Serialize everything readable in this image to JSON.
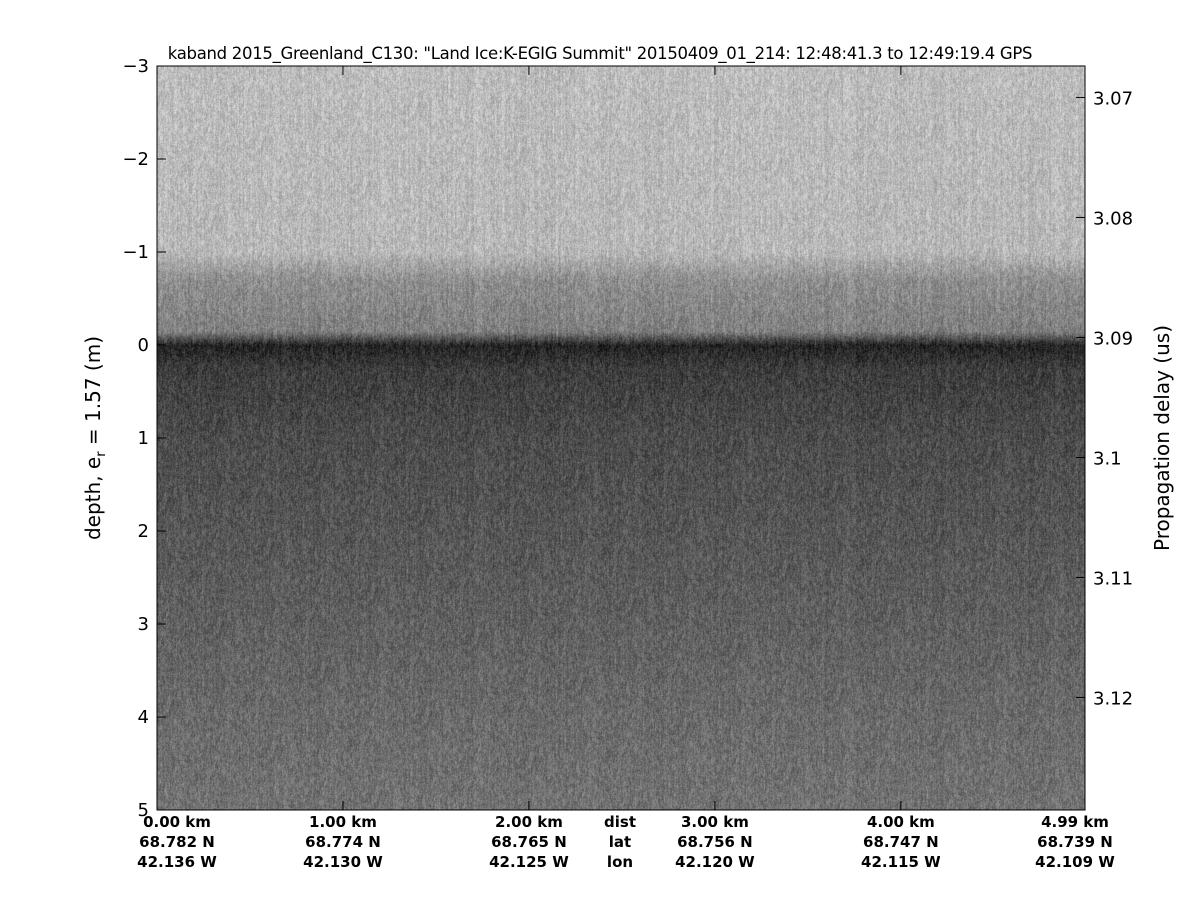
{
  "chart_data": {
    "type": "heatmap",
    "title": "kaband 2015_Greenland_C130: \"Land Ice:K-EGIG Summit\"  20150409_01_214: 12:48:41.3 to 12:49:19.4 GPS",
    "colormap": "gray",
    "ylabel_left": "depth, e",
    "ylabel_left_sub": "r",
    "ylabel_left_tail": " = 1.57 (m)",
    "ylabel_right": "Propagation delay (us)",
    "ylim_left": [
      -3,
      5
    ],
    "yticks_left": [
      -3,
      -2,
      -1,
      0,
      1,
      2,
      3,
      4,
      5
    ],
    "ytick_labels_left": [
      "−3",
      "−2",
      "−1",
      "0",
      "1",
      "2",
      "3",
      "4",
      "5"
    ],
    "ylim_right": [
      3.06738,
      3.12938
    ],
    "yticks_right": [
      3.07,
      3.08,
      3.09,
      3.1,
      3.11,
      3.12
    ],
    "ytick_labels_right": [
      "3.07",
      "3.08",
      "3.09",
      "3.1",
      "3.11",
      "3.12"
    ],
    "xlim_km": [
      0,
      4.99
    ],
    "xticks_km": [
      0,
      1,
      2,
      3,
      4,
      4.99
    ],
    "x_rows": [
      {
        "name": "dist",
        "labels": [
          "0.00 km",
          "1.00 km",
          "2.00 km",
          "3.00 km",
          "4.00 km",
          "4.99 km"
        ]
      },
      {
        "name": "lat",
        "labels": [
          "68.782 N",
          "68.774 N",
          "68.765 N",
          "68.756 N",
          "68.747 N",
          "68.739 N"
        ]
      },
      {
        "name": "lon",
        "labels": [
          "42.136 W",
          "42.130 W",
          "42.125 W",
          "42.120 W",
          "42.115 W",
          "42.109 W"
        ]
      }
    ],
    "surface_depth_m": 0,
    "intensity_profile": {
      "depth_m": [
        -3,
        -1.0,
        -0.7,
        -0.15,
        0,
        0.25,
        1,
        2,
        3,
        4,
        5
      ],
      "brightness": [
        0.74,
        0.72,
        0.56,
        0.5,
        0.14,
        0.24,
        0.3,
        0.34,
        0.38,
        0.42,
        0.45
      ]
    }
  }
}
